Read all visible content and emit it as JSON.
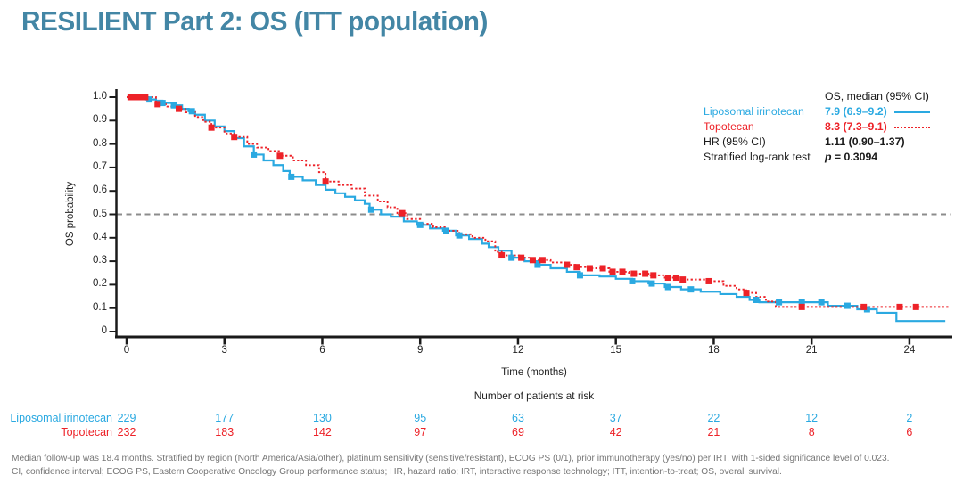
{
  "slide": {
    "title": "RESILIENT Part 2: OS (ITT population)",
    "title_color": "#4386A5"
  },
  "legend": {
    "header": "OS, median (95% CI)",
    "rows": [
      {
        "label": "Liposomal irinotecan",
        "value": "7.9 (6.9–9.2)",
        "color": "#2AA9E1",
        "swatch": "solid"
      },
      {
        "label": "Topotecan",
        "value": "8.3 (7.3–9.1)",
        "color": "#ED2228",
        "swatch": "dotted"
      }
    ],
    "hr_label": "HR (95% CI)",
    "hr_value": "1.11 (0.90–1.37)",
    "test_label": "Stratified log-rank test",
    "p_symbol": "p",
    "p_value": " = 0.3094"
  },
  "chart_data": {
    "type": "line",
    "subtype": "kaplan-meier-step",
    "title": "",
    "xlabel": "Time (months)",
    "ylabel": "OS probability",
    "xlim": [
      0,
      25.5
    ],
    "ylim": [
      0,
      1.0
    ],
    "xticks": [
      0,
      3,
      6,
      9,
      12,
      15,
      18,
      21,
      24
    ],
    "ytick_values": [
      1.0,
      0.9,
      0.8,
      0.7,
      0.6,
      0.5,
      0.4,
      0.3,
      0.2,
      0.1,
      0
    ],
    "ytick_labels": [
      "1.0",
      "0.9",
      "0.8",
      "0.7",
      "0.6",
      "0.5",
      "0.4",
      "0.3",
      "0.2",
      "0.1",
      "0"
    ],
    "grid": false,
    "legend_position": "top-right",
    "reference_line": {
      "y": 0.5,
      "style": "dashed",
      "color": "#8C8C8C"
    },
    "series": [
      {
        "name": "Liposomal irinotecan",
        "color": "#2AA9E1",
        "line_style": "solid",
        "median_95ci": "7.9 (6.9–9.2)",
        "points": [
          [
            0,
            1.0
          ],
          [
            0.6,
            0.99
          ],
          [
            0.9,
            0.985
          ],
          [
            1.1,
            0.975
          ],
          [
            1.4,
            0.965
          ],
          [
            1.7,
            0.95
          ],
          [
            1.9,
            0.94
          ],
          [
            2.1,
            0.925
          ],
          [
            2.4,
            0.9
          ],
          [
            2.7,
            0.875
          ],
          [
            3.0,
            0.855
          ],
          [
            3.3,
            0.825
          ],
          [
            3.6,
            0.79
          ],
          [
            3.9,
            0.755
          ],
          [
            4.2,
            0.73
          ],
          [
            4.5,
            0.71
          ],
          [
            4.8,
            0.685
          ],
          [
            5.0,
            0.66
          ],
          [
            5.4,
            0.645
          ],
          [
            5.8,
            0.625
          ],
          [
            6.1,
            0.605
          ],
          [
            6.4,
            0.59
          ],
          [
            6.7,
            0.575
          ],
          [
            7.0,
            0.56
          ],
          [
            7.3,
            0.545
          ],
          [
            7.45,
            0.52
          ],
          [
            7.8,
            0.5
          ],
          [
            8.1,
            0.49
          ],
          [
            8.5,
            0.47
          ],
          [
            8.9,
            0.455
          ],
          [
            9.3,
            0.44
          ],
          [
            9.7,
            0.43
          ],
          [
            10.1,
            0.41
          ],
          [
            10.5,
            0.395
          ],
          [
            10.9,
            0.375
          ],
          [
            11.1,
            0.36
          ],
          [
            11.4,
            0.345
          ],
          [
            11.8,
            0.315
          ],
          [
            12.2,
            0.3
          ],
          [
            12.6,
            0.285
          ],
          [
            13.0,
            0.27
          ],
          [
            13.5,
            0.255
          ],
          [
            13.9,
            0.24
          ],
          [
            14.5,
            0.235
          ],
          [
            15.0,
            0.225
          ],
          [
            15.5,
            0.215
          ],
          [
            16.0,
            0.205
          ],
          [
            16.5,
            0.19
          ],
          [
            17.0,
            0.18
          ],
          [
            17.6,
            0.17
          ],
          [
            18.2,
            0.16
          ],
          [
            18.7,
            0.148
          ],
          [
            19.1,
            0.135
          ],
          [
            19.4,
            0.125
          ],
          [
            21.5,
            0.11
          ],
          [
            22.4,
            0.095
          ],
          [
            23.0,
            0.08
          ],
          [
            23.6,
            0.045
          ],
          [
            25.1,
            0.045
          ]
        ],
        "censor_marks": [
          [
            0.7,
            0.99
          ],
          [
            1.1,
            0.975
          ],
          [
            1.45,
            0.965
          ],
          [
            2.0,
            0.94
          ],
          [
            3.9,
            0.755
          ],
          [
            5.05,
            0.66
          ],
          [
            7.5,
            0.52
          ],
          [
            9.0,
            0.455
          ],
          [
            9.8,
            0.43
          ],
          [
            10.2,
            0.41
          ],
          [
            11.8,
            0.315
          ],
          [
            12.6,
            0.285
          ],
          [
            13.9,
            0.24
          ],
          [
            15.5,
            0.215
          ],
          [
            16.1,
            0.205
          ],
          [
            16.6,
            0.19
          ],
          [
            17.3,
            0.18
          ],
          [
            19.3,
            0.135
          ],
          [
            20.0,
            0.125
          ],
          [
            20.7,
            0.125
          ],
          [
            21.3,
            0.125
          ],
          [
            22.1,
            0.11
          ],
          [
            22.7,
            0.095
          ]
        ]
      },
      {
        "name": "Topotecan",
        "color": "#ED2228",
        "line_style": "dotted",
        "median_95ci": "8.3 (7.3–9.1)",
        "points": [
          [
            0,
            1.0
          ],
          [
            0.9,
            0.97
          ],
          [
            1.2,
            0.96
          ],
          [
            1.5,
            0.95
          ],
          [
            1.8,
            0.935
          ],
          [
            2.1,
            0.915
          ],
          [
            2.35,
            0.895
          ],
          [
            2.6,
            0.87
          ],
          [
            3.0,
            0.845
          ],
          [
            3.3,
            0.83
          ],
          [
            3.7,
            0.8
          ],
          [
            4.0,
            0.785
          ],
          [
            4.35,
            0.77
          ],
          [
            4.7,
            0.75
          ],
          [
            5.1,
            0.73
          ],
          [
            5.5,
            0.71
          ],
          [
            5.9,
            0.68
          ],
          [
            6.1,
            0.64
          ],
          [
            6.5,
            0.625
          ],
          [
            6.9,
            0.61
          ],
          [
            7.3,
            0.58
          ],
          [
            7.7,
            0.555
          ],
          [
            8.0,
            0.53
          ],
          [
            8.3,
            0.505
          ],
          [
            8.6,
            0.48
          ],
          [
            9.0,
            0.46
          ],
          [
            9.4,
            0.445
          ],
          [
            9.8,
            0.43
          ],
          [
            10.2,
            0.415
          ],
          [
            10.6,
            0.4
          ],
          [
            11.0,
            0.385
          ],
          [
            11.3,
            0.34
          ],
          [
            11.5,
            0.325
          ],
          [
            12.1,
            0.315
          ],
          [
            12.4,
            0.305
          ],
          [
            13.0,
            0.295
          ],
          [
            13.5,
            0.285
          ],
          [
            13.8,
            0.275
          ],
          [
            14.2,
            0.27
          ],
          [
            14.8,
            0.255
          ],
          [
            15.4,
            0.247
          ],
          [
            16.0,
            0.24
          ],
          [
            16.5,
            0.23
          ],
          [
            17.0,
            0.222
          ],
          [
            17.8,
            0.215
          ],
          [
            18.3,
            0.195
          ],
          [
            18.7,
            0.18
          ],
          [
            19.0,
            0.165
          ],
          [
            19.3,
            0.148
          ],
          [
            19.6,
            0.128
          ],
          [
            19.9,
            0.105
          ],
          [
            25.2,
            0.105
          ]
        ],
        "censor_marks": [
          [
            0.12,
            1.0
          ],
          [
            0.27,
            1.0
          ],
          [
            0.42,
            1.0
          ],
          [
            0.57,
            1.0
          ],
          [
            0.95,
            0.97
          ],
          [
            1.6,
            0.95
          ],
          [
            2.6,
            0.87
          ],
          [
            3.3,
            0.83
          ],
          [
            4.7,
            0.75
          ],
          [
            6.1,
            0.64
          ],
          [
            8.45,
            0.505
          ],
          [
            11.5,
            0.325
          ],
          [
            12.1,
            0.315
          ],
          [
            12.45,
            0.305
          ],
          [
            12.75,
            0.305
          ],
          [
            13.5,
            0.285
          ],
          [
            13.8,
            0.275
          ],
          [
            14.2,
            0.27
          ],
          [
            14.6,
            0.27
          ],
          [
            14.9,
            0.255
          ],
          [
            15.2,
            0.255
          ],
          [
            15.55,
            0.247
          ],
          [
            15.9,
            0.247
          ],
          [
            16.15,
            0.24
          ],
          [
            16.6,
            0.23
          ],
          [
            16.85,
            0.23
          ],
          [
            17.05,
            0.222
          ],
          [
            17.85,
            0.215
          ],
          [
            19.0,
            0.165
          ],
          [
            20.7,
            0.105
          ],
          [
            22.6,
            0.105
          ],
          [
            23.7,
            0.105
          ],
          [
            24.2,
            0.105
          ]
        ]
      }
    ],
    "hr_95ci": "1.11 (0.90–1.37)",
    "stratified_log_rank_p": "0.3094",
    "at_risk_table": {
      "title": "Number of patients at risk",
      "times": [
        0,
        3,
        6,
        9,
        12,
        15,
        18,
        21,
        24
      ],
      "rows": [
        {
          "name": "Liposomal irinotecan",
          "color": "#2AA9E1",
          "counts": [
            229,
            177,
            130,
            95,
            63,
            37,
            22,
            12,
            2
          ]
        },
        {
          "name": "Topotecan",
          "color": "#ED2228",
          "counts": [
            232,
            183,
            142,
            97,
            69,
            42,
            21,
            8,
            6
          ]
        }
      ]
    }
  },
  "footnotes": [
    "Median follow-up was 18.4 months. Stratified by region (North America/Asia/other), platinum sensitivity (sensitive/resistant), ECOG PS (0/1), prior immunotherapy (yes/no) per IRT, with 1-sided significance level of 0.023.",
    "CI, confidence interval; ECOG PS, Eastern Cooperative Oncology Group performance status; HR, hazard ratio; IRT, interactive response technology; ITT, intention-to-treat; OS, overall survival."
  ]
}
